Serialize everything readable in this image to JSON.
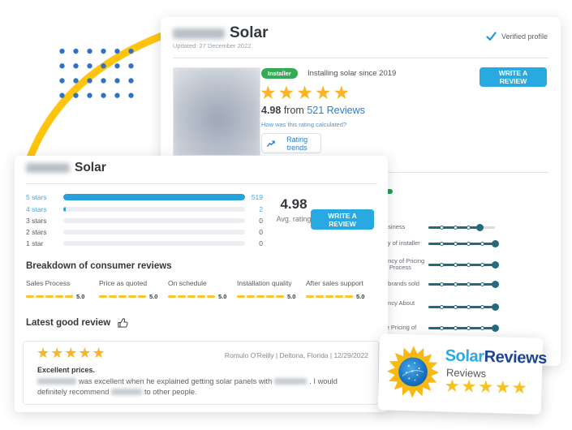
{
  "colors": {
    "accent_blue": "#29a9e2",
    "link_blue": "#2a7dd2",
    "bar_blue": "#28a0da",
    "bar_label_blue": "#4aa7da",
    "star_gold": "#fbb423",
    "dash_gold": "#fcc32f",
    "installer_green": "#36ab55",
    "trend_green": "#1f9e52",
    "slider_teal": "#25697b",
    "brand_light_blue": "#29abe2",
    "brand_navy": "#1d4493",
    "decor_dot_blue": "#2e72c8",
    "decor_arc_yellow": "#ffc40d"
  },
  "profile_card": {
    "title": "Solar",
    "updated": "Updated: 27 December 2022",
    "verified_label": "Verified profile",
    "installer_badge": "Installer",
    "since_text": "Installing solar since 2019",
    "stars": 5,
    "rating_value": "4.98",
    "rating_connector": "from",
    "reviews_link": "521 Reviews",
    "rating_help_link": "How was this rating calculated?",
    "rating_trends_label": "Rating trends",
    "write_review_label": "WRITE A REVIEW",
    "sliders": [
      {
        "label_lines": [
          "usiness"
        ],
        "pct": 78
      },
      {
        "label_lines": [
          "ity of installer"
        ],
        "pct": 100
      },
      {
        "label_lines": [
          "ency of Pricing",
          "s Process"
        ],
        "pct": 100
      },
      {
        "label_lines": [
          "f brands sold"
        ],
        "pct": 100
      },
      {
        "label_lines": [
          "ency About",
          "n"
        ],
        "pct": 100
      },
      {
        "label_lines": [
          "le Pricing of"
        ],
        "pct": 100
      }
    ]
  },
  "summary_card": {
    "title": "Solar",
    "rating_bars": [
      {
        "label": "5 stars",
        "count": "519",
        "pct": 100,
        "active": true
      },
      {
        "label": "4 stars",
        "count": "2",
        "pct": 1.5,
        "active": true
      },
      {
        "label": "3 stars",
        "count": "0",
        "pct": 0,
        "active": false
      },
      {
        "label": "2 stars",
        "count": "0",
        "pct": 0,
        "active": false
      },
      {
        "label": "1 star",
        "count": "0",
        "pct": 0,
        "active": false
      }
    ],
    "avg_value": "4.98",
    "avg_label": "Avg. rating",
    "write_review_label": "WRITE A REVIEW",
    "breakdown_title": "Breakdown of consumer reviews",
    "breakdown": [
      {
        "label": "Sales Process",
        "score": "5.0"
      },
      {
        "label": "Price as quoted",
        "score": "5.0"
      },
      {
        "label": "On schedule",
        "score": "5.0"
      },
      {
        "label": "Installation quality",
        "score": "5.0"
      },
      {
        "label": "After sales support",
        "score": "5.0"
      }
    ],
    "latest_review_title": "Latest good review",
    "review": {
      "stars": 5,
      "meta": "Romulo O'Reilly | Deltona, Florida | 12/29/2022",
      "headline": "Excellent prices.",
      "body_part1": "was excellent when he explained getting solar panels with",
      "body_part2": ". I would definitely recommend",
      "body_part3": "to other people."
    }
  },
  "badge_card": {
    "brand_part1": "Solar",
    "brand_part2": "Reviews",
    "subtitle": "Reviews",
    "stars": 5
  }
}
